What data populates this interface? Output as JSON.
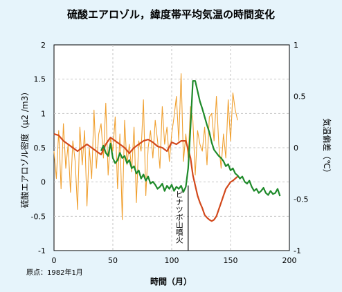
{
  "chart_data": {
    "type": "line",
    "title": "硫酸エアロゾル，緯度帯平均気温の時間変化",
    "xlabel": "時間（月）",
    "ylabel_left": "硫酸エアロゾル密度（μ2 /m3）",
    "ylabel_right": "気温偏差（℃）",
    "xlim": [
      0,
      200
    ],
    "ylim_left": [
      -1,
      2
    ],
    "ylim_right": [
      -1,
      1
    ],
    "x_ticks": [
      "0",
      "50",
      "100",
      "150",
      "200"
    ],
    "y_ticks_left": [
      "-1",
      "-0.5",
      "0",
      "0.5",
      "1",
      "1.5",
      "2"
    ],
    "y_ticks_right": [
      "-1",
      "-0.5",
      "0",
      "0.5",
      "1"
    ],
    "grid": true,
    "note": "原点：1982年1月",
    "annotation": {
      "text": "ピナツボ山噴火",
      "x": 114
    },
    "colors": {
      "orange": "#f0a030",
      "red": "#d2491c",
      "green": "#1e8a2a",
      "grid": "#c6c6c6",
      "background": "#e6f4fb"
    },
    "series": [
      {
        "axis": "left",
        "color": "#f0a030",
        "x": [
          0,
          2,
          4,
          6,
          8,
          10,
          12,
          14,
          16,
          18,
          20,
          22,
          24,
          26,
          28,
          30,
          32,
          34,
          36,
          38,
          40,
          42,
          44,
          46,
          48,
          50,
          52,
          54,
          56,
          58,
          60,
          62,
          64,
          66,
          68,
          70,
          72,
          74,
          76,
          78,
          80,
          82,
          84,
          86,
          88,
          90,
          92,
          94,
          96,
          98,
          100,
          102,
          104,
          106,
          108,
          110,
          112,
          114,
          116,
          118,
          120,
          122,
          124,
          126,
          128,
          130,
          132,
          134,
          136,
          138,
          140,
          142,
          144,
          146,
          148,
          150,
          152,
          154,
          156
        ],
        "y": [
          0.45,
          0.05,
          0.75,
          -0.1,
          0.85,
          0.2,
          0.55,
          -0.15,
          0.6,
          0.3,
          -0.4,
          0.8,
          0.25,
          0.75,
          -0.35,
          0.5,
          0.05,
          1.05,
          0.2,
          0.7,
          0.85,
          0.35,
          1.15,
          0.1,
          0.65,
          0.45,
          0.95,
          -0.1,
          0.7,
          -0.55,
          0.9,
          0.25,
          0.55,
          0.15,
          0.8,
          -0.3,
          0.6,
          0.45,
          1.2,
          -0.2,
          0.5,
          0.75,
          0.35,
          0.9,
          0.6,
          0.2,
          1.1,
          0.55,
          0.8,
          0.3,
          0.7,
          0.95,
          1.25,
          0.6,
          1.58,
          0.3,
          0.7,
          0.35,
          1.1,
          0.9,
          0.1,
          0.75,
          0.55,
          0.45,
          0.8,
          0.25,
          0.95,
          1.0,
          0.6,
          1.25,
          0.55,
          0.2,
          0.7,
          0.35,
          1.2,
          0.6,
          1.3,
          1.05,
          0.9
        ]
      },
      {
        "axis": "left",
        "color": "#d2491c",
        "x": [
          0,
          4,
          8,
          12,
          16,
          20,
          24,
          28,
          32,
          36,
          40,
          44,
          48,
          52,
          56,
          60,
          64,
          68,
          72,
          76,
          80,
          84,
          88,
          92,
          96,
          100,
          104,
          108,
          112,
          116,
          118,
          120,
          122,
          124,
          126,
          128,
          130,
          132,
          134,
          136,
          138,
          140,
          142,
          144,
          146,
          148,
          150,
          152,
          154,
          156
        ],
        "y": [
          0.7,
          0.68,
          0.6,
          0.55,
          0.5,
          0.45,
          0.5,
          0.55,
          0.5,
          0.45,
          0.4,
          0.55,
          0.65,
          0.6,
          0.55,
          0.5,
          0.42,
          0.5,
          0.55,
          0.6,
          0.62,
          0.58,
          0.52,
          0.5,
          0.45,
          0.58,
          0.55,
          0.6,
          0.6,
          0.35,
          0.1,
          -0.05,
          -0.2,
          -0.3,
          -0.38,
          -0.48,
          -0.52,
          -0.55,
          -0.57,
          -0.55,
          -0.5,
          -0.4,
          -0.3,
          -0.2,
          -0.1,
          -0.05,
          0.0,
          0.02,
          0.05,
          0.08
        ]
      },
      {
        "axis": "right",
        "color": "#1e8a2a",
        "x": [
          40,
          42,
          44,
          46,
          48,
          50,
          52,
          54,
          56,
          58,
          60,
          62,
          64,
          66,
          68,
          70,
          72,
          74,
          76,
          78,
          80,
          82,
          84,
          86,
          88,
          90,
          92,
          94,
          96,
          98,
          100,
          102,
          104,
          106,
          108,
          110,
          112,
          114,
          116,
          118,
          120,
          122,
          124,
          126,
          128,
          130,
          132,
          134,
          136,
          138,
          140,
          142,
          144,
          146,
          148,
          150,
          152,
          154,
          156,
          158,
          160,
          162,
          164,
          166,
          168,
          170,
          172,
          174,
          176,
          178,
          180,
          182,
          184,
          186,
          188,
          190,
          192
        ],
        "y": [
          -0.03,
          0.02,
          -0.05,
          -0.08,
          0.04,
          -0.1,
          -0.15,
          -0.12,
          -0.05,
          -0.1,
          -0.08,
          -0.15,
          -0.12,
          -0.2,
          -0.18,
          -0.25,
          -0.22,
          -0.3,
          -0.26,
          -0.32,
          -0.28,
          -0.35,
          -0.33,
          -0.36,
          -0.4,
          -0.38,
          -0.35,
          -0.42,
          -0.37,
          -0.4,
          -0.36,
          -0.42,
          -0.38,
          -0.4,
          -0.37,
          -0.43,
          -0.38,
          -0.2,
          0.2,
          0.65,
          0.65,
          0.55,
          0.45,
          0.38,
          0.3,
          0.22,
          0.15,
          0.05,
          -0.02,
          -0.05,
          -0.08,
          -0.1,
          -0.13,
          -0.18,
          -0.16,
          -0.22,
          -0.2,
          -0.25,
          -0.27,
          -0.3,
          -0.28,
          -0.33,
          -0.35,
          -0.32,
          -0.38,
          -0.42,
          -0.4,
          -0.44,
          -0.42,
          -0.39,
          -0.44,
          -0.46,
          -0.42,
          -0.45,
          -0.44,
          -0.4,
          -0.47
        ]
      }
    ]
  }
}
